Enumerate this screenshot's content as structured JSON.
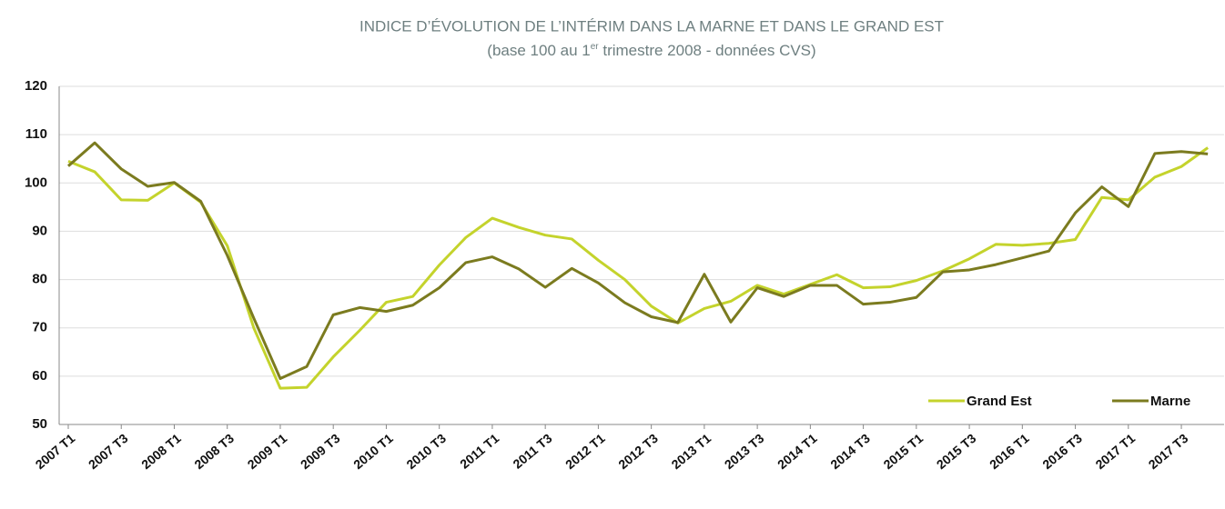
{
  "chart_data": {
    "type": "line",
    "title": "INDICE D’ÉVOLUTION DE L’INTÉRIM DANS LA MARNE ET DANS LE GRAND EST",
    "subtitle": {
      "before": "(base 100 au 1",
      "sup": "er",
      "after": " trimestre 2008 - données CVS)"
    },
    "categories": [
      "2007 T1",
      null,
      "2007 T3",
      null,
      "2008 T1",
      null,
      "2008 T3",
      null,
      "2009 T1",
      null,
      "2009 T3",
      null,
      "2010 T1",
      null,
      "2010 T3",
      null,
      "2011 T1",
      null,
      "2011 T3",
      null,
      "2012 T1",
      null,
      "2012 T3",
      null,
      "2013 T1",
      null,
      "2013 T3",
      null,
      "2014 T1",
      null,
      "2014 T3",
      null,
      "2015 T1",
      null,
      "2015 T3",
      null,
      "2016 T1",
      null,
      "2016 T3",
      null,
      "2017 T1",
      null,
      "2017 T3",
      null
    ],
    "series": [
      {
        "name": "Grand Est",
        "color": "#c4d32c",
        "values": [
          104.5,
          102.3,
          96.5,
          96.4,
          100,
          96,
          87,
          70,
          57.5,
          57.7,
          64,
          69.5,
          75.3,
          76.5,
          83,
          88.7,
          92.7,
          90.8,
          89.2,
          88.4,
          84,
          80,
          74.5,
          71,
          74,
          75.5,
          78.8,
          77,
          79,
          81,
          78.3,
          78.5,
          79.8,
          81.8,
          84.3,
          87.3,
          87.1,
          87.5,
          88.3,
          97,
          96.5,
          101.2,
          103.4,
          107.3
        ]
      },
      {
        "name": "Marne",
        "color": "#7b7b1f",
        "values": [
          103.5,
          108.3,
          102.9,
          99.3,
          100.1,
          96.2,
          85,
          72,
          59.5,
          62,
          72.7,
          74.2,
          73.4,
          74.7,
          78.3,
          83.5,
          84.7,
          82.2,
          78.4,
          82.3,
          79.3,
          75.2,
          72.3,
          71.1,
          81.1,
          71.2,
          78.3,
          76.5,
          78.8,
          78.8,
          74.9,
          75.3,
          76.3,
          81.6,
          82,
          83.1,
          84.5,
          85.9,
          93.8,
          99.2,
          95.1,
          106.1,
          106.5,
          106
        ]
      }
    ],
    "ylim": [
      50,
      120
    ],
    "yticks": [
      50,
      60,
      70,
      80,
      90,
      100,
      110,
      120
    ],
    "grid": true,
    "legend": "bottom-right"
  }
}
